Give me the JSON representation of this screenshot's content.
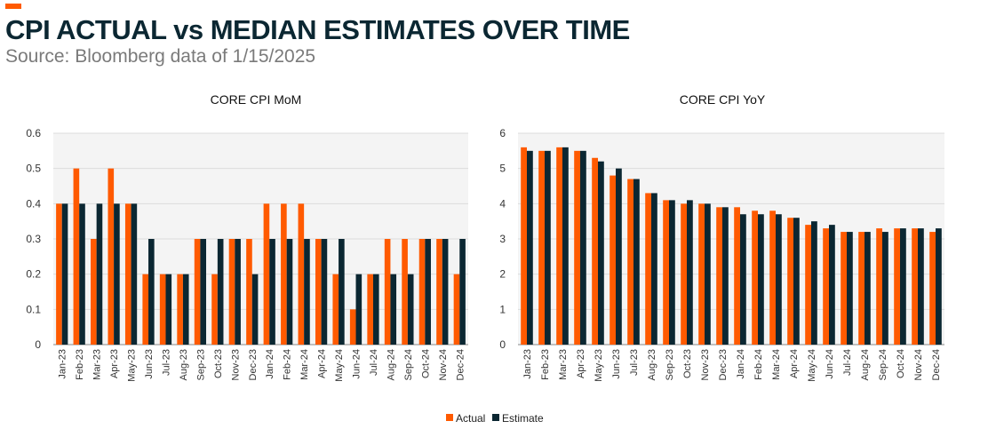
{
  "header": {
    "title": "CPI ACTUAL vs MEDIAN ESTIMATES OVER TIME",
    "subtitle": "Source: Bloomberg data of 1/15/2025"
  },
  "colors": {
    "actual": "#ff5a00",
    "estimate": "#0b2732",
    "plot_bg": "#f4f4f4",
    "title": "#0b2732"
  },
  "legend": {
    "actual": "Actual",
    "estimate": "Estimate"
  },
  "chart_data": [
    {
      "type": "bar",
      "title": "CORE CPI MoM",
      "xlabel": "",
      "ylabel": "",
      "ylim": [
        0,
        0.6
      ],
      "yticks": [
        "0",
        "0.1",
        "0.2",
        "0.3",
        "0.4",
        "0.5",
        "0.6"
      ],
      "categories": [
        "Jan-23",
        "Feb-23",
        "Mar-23",
        "Apr-23",
        "May-23",
        "Jun-23",
        "Jul-23",
        "Aug-23",
        "Sep-23",
        "Oct-23",
        "Nov-23",
        "Dec-23",
        "Jan-24",
        "Feb-24",
        "Mar-24",
        "Apr-24",
        "May-24",
        "Jun-24",
        "Jul-24",
        "Aug-24",
        "Sep-24",
        "Oct-24",
        "Nov-24",
        "Dec-24"
      ],
      "series": [
        {
          "name": "Actual",
          "values": [
            0.4,
            0.5,
            0.3,
            0.5,
            0.4,
            0.2,
            0.2,
            0.2,
            0.3,
            0.2,
            0.3,
            0.3,
            0.4,
            0.4,
            0.4,
            0.3,
            0.2,
            0.1,
            0.2,
            0.3,
            0.3,
            0.3,
            0.3,
            0.2
          ]
        },
        {
          "name": "Estimate",
          "values": [
            0.4,
            0.4,
            0.4,
            0.4,
            0.4,
            0.3,
            0.2,
            0.2,
            0.3,
            0.3,
            0.3,
            0.2,
            0.3,
            0.3,
            0.3,
            0.3,
            0.3,
            0.2,
            0.2,
            0.2,
            0.2,
            0.3,
            0.3,
            0.3
          ]
        }
      ]
    },
    {
      "type": "bar",
      "title": "CORE CPI YoY",
      "xlabel": "",
      "ylabel": "",
      "ylim": [
        0,
        6
      ],
      "yticks": [
        "0",
        "1",
        "2",
        "3",
        "4",
        "5",
        "6"
      ],
      "categories": [
        "Jan-23",
        "Feb-23",
        "Mar-23",
        "Apr-23",
        "May-23",
        "Jun-23",
        "Jul-23",
        "Aug-23",
        "Sep-23",
        "Oct-23",
        "Nov-23",
        "Dec-23",
        "Jan-24",
        "Feb-24",
        "Mar-24",
        "Apr-24",
        "May-24",
        "Jun-24",
        "Jul-24",
        "Aug-24",
        "Sep-24",
        "Oct-24",
        "Nov-24",
        "Dec-24"
      ],
      "series": [
        {
          "name": "Actual",
          "values": [
            5.6,
            5.5,
            5.6,
            5.5,
            5.3,
            4.8,
            4.7,
            4.3,
            4.1,
            4.0,
            4.0,
            3.9,
            3.9,
            3.8,
            3.8,
            3.6,
            3.4,
            3.3,
            3.2,
            3.2,
            3.3,
            3.3,
            3.3,
            3.2
          ]
        },
        {
          "name": "Estimate",
          "values": [
            5.5,
            5.5,
            5.6,
            5.5,
            5.2,
            5.0,
            4.7,
            4.3,
            4.1,
            4.1,
            4.0,
            3.9,
            3.7,
            3.7,
            3.7,
            3.6,
            3.5,
            3.4,
            3.2,
            3.2,
            3.2,
            3.3,
            3.3,
            3.3
          ]
        }
      ]
    }
  ]
}
